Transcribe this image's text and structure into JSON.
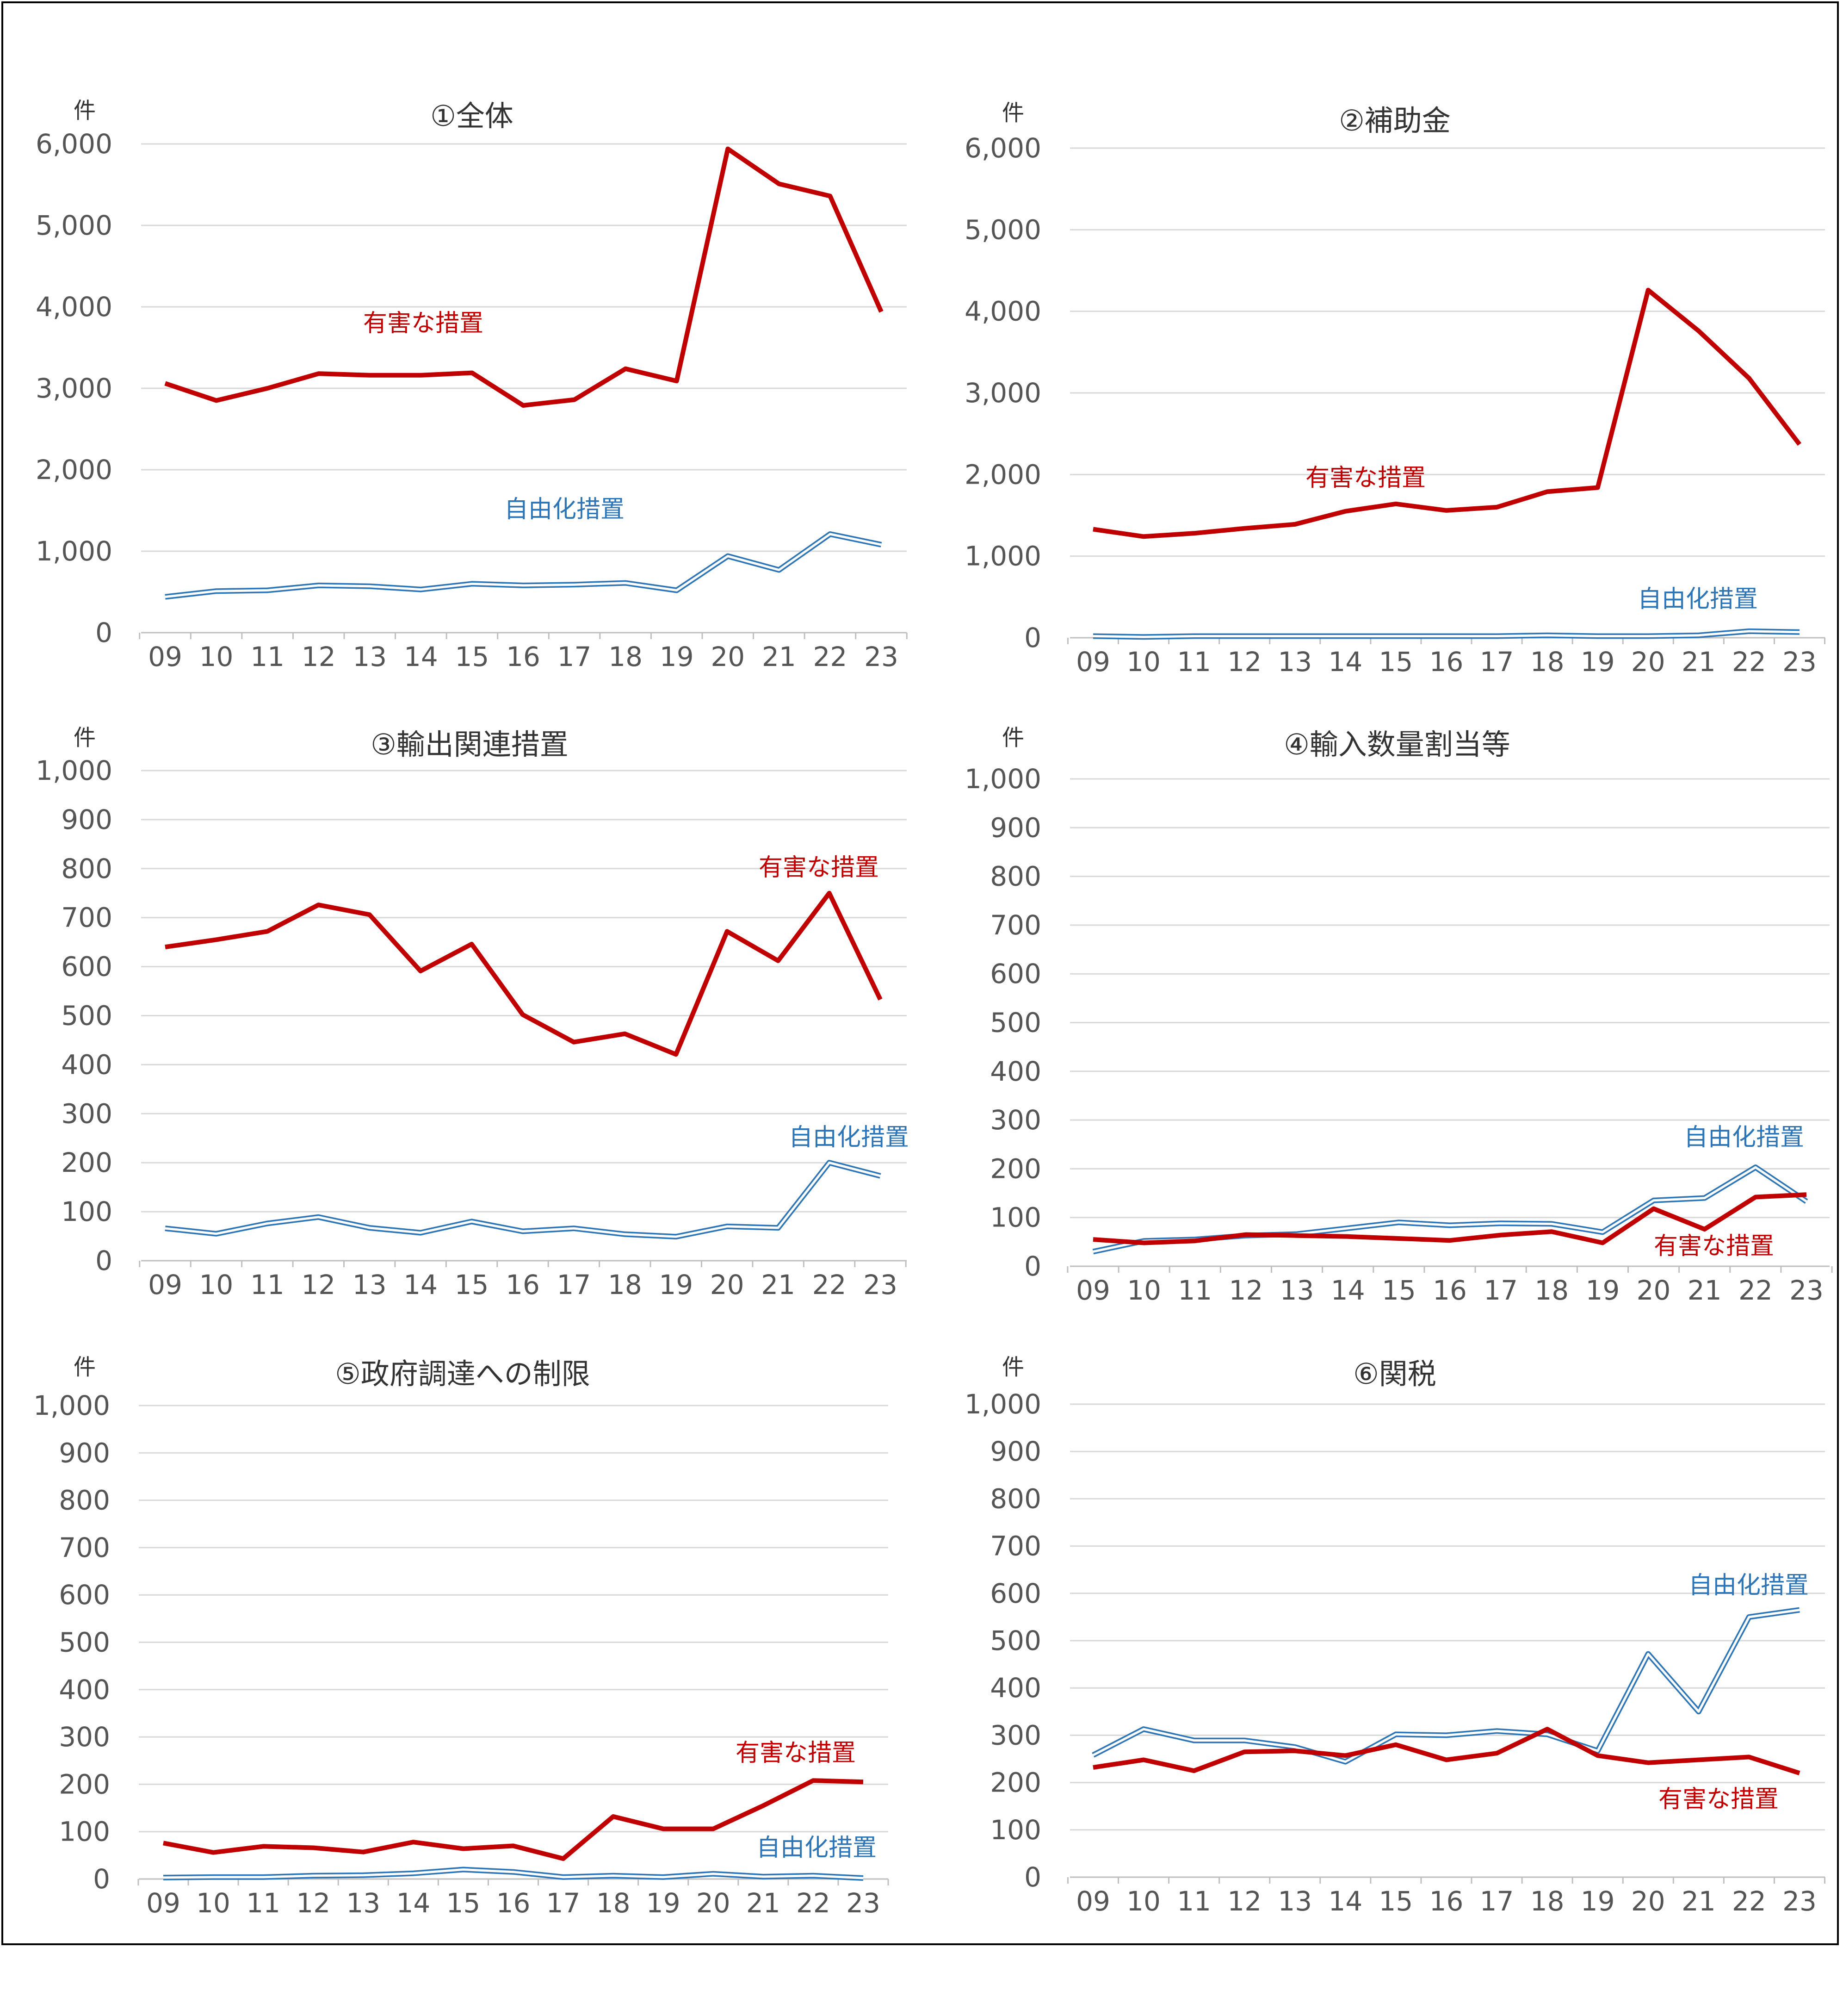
{
  "colors": {
    "harmful": "#c00000",
    "liberal": "#2e75b6",
    "grid": "#d9d9d9",
    "axis": "#bfbfbf",
    "text": "#555555"
  },
  "series_labels": {
    "harmful": "有害な措置",
    "liberal": "自由化措置"
  },
  "chart_data": [
    {
      "type": "line",
      "title": "①全体",
      "unit": "件",
      "categories": [
        "09",
        "10",
        "11",
        "12",
        "13",
        "14",
        "15",
        "16",
        "17",
        "18",
        "19",
        "20",
        "21",
        "22",
        "23"
      ],
      "ylim": [
        0,
        6000
      ],
      "yticks": [
        0,
        1000,
        2000,
        3000,
        4000,
        5000,
        6000
      ],
      "ytick_labels": [
        "0",
        "1,000",
        "2,000",
        "3,000",
        "4,000",
        "5,000",
        "6,000"
      ],
      "grid": true,
      "series": [
        {
          "key": "harmful",
          "name": "有害な措置",
          "values": [
            3060,
            2850,
            3000,
            3180,
            3160,
            3160,
            3190,
            2790,
            2860,
            3240,
            3090,
            5940,
            5510,
            5360,
            3940
          ]
        },
        {
          "key": "liberal",
          "name": "自由化措置",
          "values": [
            440,
            510,
            520,
            580,
            570,
            530,
            600,
            580,
            590,
            610,
            520,
            940,
            770,
            1210,
            1080
          ]
        }
      ]
    },
    {
      "type": "line",
      "title": "②補助金",
      "unit": "件",
      "categories": [
        "09",
        "10",
        "11",
        "12",
        "13",
        "14",
        "15",
        "16",
        "17",
        "18",
        "19",
        "20",
        "21",
        "22",
        "23"
      ],
      "ylim": [
        0,
        6000
      ],
      "yticks": [
        0,
        1000,
        2000,
        3000,
        4000,
        5000,
        6000
      ],
      "ytick_labels": [
        "0",
        "1,000",
        "2,000",
        "3,000",
        "4,000",
        "5,000",
        "6,000"
      ],
      "grid": true,
      "series": [
        {
          "key": "harmful",
          "name": "有害な措置",
          "values": [
            1330,
            1240,
            1280,
            1340,
            1390,
            1550,
            1640,
            1560,
            1600,
            1790,
            1840,
            4260,
            3760,
            3180,
            2370
          ]
        },
        {
          "key": "liberal",
          "name": "自由化措置",
          "values": [
            20,
            10,
            20,
            20,
            20,
            20,
            20,
            20,
            20,
            30,
            20,
            20,
            30,
            80,
            70
          ]
        }
      ]
    },
    {
      "type": "line",
      "title": "③輸出関連措置",
      "unit": "件",
      "categories": [
        "09",
        "10",
        "11",
        "12",
        "13",
        "14",
        "15",
        "16",
        "17",
        "18",
        "19",
        "20",
        "21",
        "22",
        "23"
      ],
      "ylim": [
        0,
        1000
      ],
      "yticks": [
        0,
        100,
        200,
        300,
        400,
        500,
        600,
        700,
        800,
        900,
        1000
      ],
      "ytick_labels": [
        "0",
        "100",
        "200",
        "300",
        "400",
        "500",
        "600",
        "700",
        "800",
        "900",
        "1,000"
      ],
      "grid": true,
      "series": [
        {
          "key": "harmful",
          "name": "有害な措置",
          "values": [
            640,
            655,
            672,
            726,
            706,
            591,
            646,
            502,
            446,
            463,
            421,
            672,
            612,
            750,
            533
          ]
        },
        {
          "key": "liberal",
          "name": "自由化措置",
          "values": [
            66,
            55,
            76,
            89,
            67,
            57,
            80,
            60,
            66,
            54,
            49,
            70,
            67,
            200,
            173
          ]
        }
      ]
    },
    {
      "type": "line",
      "title": "④輸入数量割当等",
      "unit": "件",
      "categories": [
        "09",
        "10",
        "11",
        "12",
        "13",
        "14",
        "15",
        "16",
        "17",
        "18",
        "19",
        "20",
        "21",
        "22",
        "23"
      ],
      "ylim": [
        0,
        1000
      ],
      "yticks": [
        0,
        100,
        200,
        300,
        400,
        500,
        600,
        700,
        800,
        900,
        1000
      ],
      "ytick_labels": [
        "0",
        "100",
        "200",
        "300",
        "400",
        "500",
        "600",
        "700",
        "800",
        "900",
        "1,000"
      ],
      "grid": true,
      "series": [
        {
          "key": "harmful",
          "name": "有害な措置",
          "values": [
            55,
            48,
            52,
            65,
            63,
            61,
            57,
            53,
            64,
            71,
            48,
            118,
            76,
            142,
            147
          ]
        },
        {
          "key": "liberal",
          "name": "自由化措置",
          "values": [
            30,
            52,
            55,
            63,
            66,
            78,
            90,
            84,
            88,
            87,
            70,
            135,
            140,
            203,
            133
          ]
        }
      ]
    },
    {
      "type": "line",
      "title": "⑤政府調達への制限",
      "unit": "件",
      "categories": [
        "09",
        "10",
        "11",
        "12",
        "13",
        "14",
        "15",
        "16",
        "17",
        "18",
        "19",
        "20",
        "21",
        "22",
        "23"
      ],
      "ylim": [
        0,
        1000
      ],
      "yticks": [
        0,
        100,
        200,
        300,
        400,
        500,
        600,
        700,
        800,
        900,
        1000
      ],
      "ytick_labels": [
        "0",
        "100",
        "200",
        "300",
        "400",
        "500",
        "600",
        "700",
        "800",
        "900",
        "1,000"
      ],
      "grid": true,
      "series": [
        {
          "key": "harmful",
          "name": "有害な措置",
          "values": [
            76,
            56,
            69,
            66,
            57,
            78,
            64,
            70,
            43,
            132,
            106,
            106,
            155,
            208,
            205
          ]
        },
        {
          "key": "liberal",
          "name": "自由化措置",
          "values": [
            3,
            4,
            4,
            7,
            8,
            12,
            20,
            15,
            4,
            7,
            4,
            11,
            5,
            7,
            2
          ]
        }
      ]
    },
    {
      "type": "line",
      "title": "⑥関税",
      "unit": "件",
      "categories": [
        "09",
        "10",
        "11",
        "12",
        "13",
        "14",
        "15",
        "16",
        "17",
        "18",
        "19",
        "20",
        "21",
        "22",
        "23"
      ],
      "ylim": [
        0,
        1000
      ],
      "yticks": [
        0,
        100,
        200,
        300,
        400,
        500,
        600,
        700,
        800,
        900,
        1000
      ],
      "ytick_labels": [
        "0",
        "100",
        "200",
        "300",
        "400",
        "500",
        "600",
        "700",
        "800",
        "900",
        "1,000"
      ],
      "grid": true,
      "series": [
        {
          "key": "harmful",
          "name": "有害な措置",
          "values": [
            232,
            248,
            225,
            265,
            267,
            257,
            280,
            248,
            262,
            313,
            257,
            242,
            248,
            254,
            220
          ]
        },
        {
          "key": "liberal",
          "name": "自由化措置",
          "values": [
            258,
            313,
            289,
            289,
            275,
            244,
            302,
            300,
            309,
            302,
            267,
            472,
            350,
            550,
            565
          ]
        }
      ]
    }
  ]
}
